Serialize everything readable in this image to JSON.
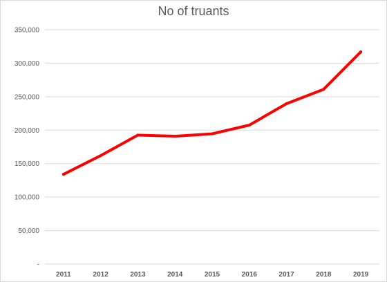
{
  "chart_data": {
    "type": "line",
    "title": "No of truants",
    "xlabel": "",
    "ylabel": "",
    "categories": [
      "2011",
      "2012",
      "2013",
      "2014",
      "2015",
      "2016",
      "2017",
      "2018",
      "2019"
    ],
    "series": [
      {
        "values": [
          134000,
          162000,
          192500,
          191000,
          194500,
          207500,
          239500,
          261000,
          317000
        ],
        "color": "#ff0000"
      }
    ],
    "ylim": [
      0,
      350000
    ],
    "yticks": [
      0,
      50000,
      100000,
      150000,
      200000,
      250000,
      300000,
      350000
    ],
    "ytick_labels": [
      "-",
      "50,000",
      "100,000",
      "150,000",
      "200,000",
      "250,000",
      "300,000",
      "350,000"
    ],
    "grid": true,
    "legend": "none",
    "colors": {
      "line": "#ff0000",
      "grid": "#d9d9d9",
      "text": "#595959"
    }
  }
}
